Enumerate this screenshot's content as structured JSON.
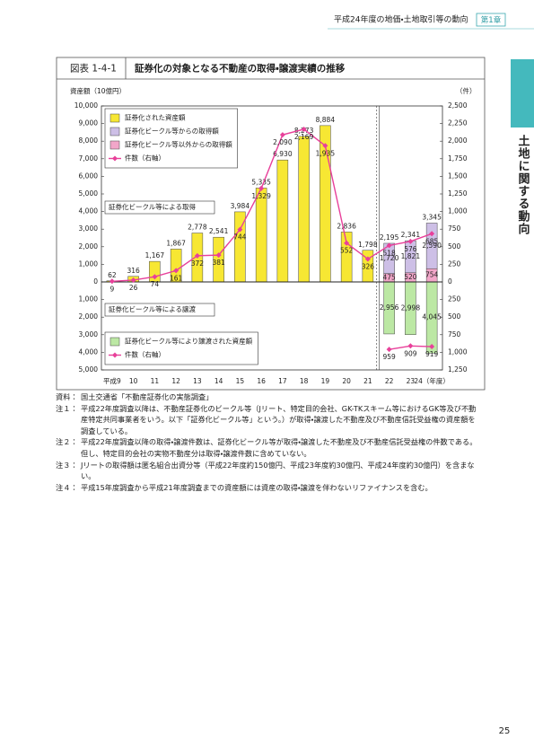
{
  "header": {
    "running_title": "平成24年度の地価・土地取引等の動向",
    "chapter": "第1章"
  },
  "side_tab": "土地に関する動向",
  "figure": {
    "number": "図表 1-4-1",
    "title": "証券化の対象となる不動産の取得・譲渡実績の推移"
  },
  "chart_data": {
    "type": "bar",
    "y_label": "資産額（10億円）",
    "y2_label": "（件）",
    "categories": [
      "平成9",
      "10",
      "11",
      "12",
      "13",
      "14",
      "15",
      "16",
      "17",
      "18",
      "19",
      "20",
      "21",
      "22",
      "23",
      "24（年度）"
    ],
    "ylim": [
      -5000,
      10000
    ],
    "yticks": [
      {
        "value": 10000,
        "label": "10,000"
      },
      {
        "value": 9000,
        "label": "9,000"
      },
      {
        "value": 8000,
        "label": "8,000"
      },
      {
        "value": 7000,
        "label": "7,000"
      },
      {
        "value": 6000,
        "label": "6,000"
      },
      {
        "value": 5000,
        "label": "5,000"
      },
      {
        "value": 4000,
        "label": "4,000"
      },
      {
        "value": 3000,
        "label": "3,000"
      },
      {
        "value": 2000,
        "label": "2,000"
      },
      {
        "value": 1000,
        "label": "1,000"
      },
      0,
      {
        "value": -1000,
        "label": "1,000"
      },
      {
        "value": -2000,
        "label": "2,000"
      },
      {
        "value": -3000,
        "label": "3,000"
      },
      {
        "value": -4000,
        "label": "4,000"
      },
      {
        "value": -5000,
        "label": "5,000"
      }
    ],
    "y2lim": [
      -1250,
      2500
    ],
    "y2ticks": [
      {
        "value": 2500,
        "label": "2,500"
      },
      {
        "value": 2250,
        "label": "2,250"
      },
      {
        "value": 2000,
        "label": "2,000"
      },
      {
        "value": 1750,
        "label": "1,750"
      },
      {
        "value": 1500,
        "label": "1,500"
      },
      {
        "value": 1250,
        "label": "1,250"
      },
      {
        "value": 1000,
        "label": "1,000"
      },
      750,
      500,
      250,
      0,
      {
        "value": -250,
        "label": "250"
      },
      {
        "value": -500,
        "label": "500"
      },
      {
        "value": -750,
        "label": "750"
      },
      {
        "value": -1000,
        "label": "1,000"
      },
      {
        "value": -1250,
        "label": "1,250"
      }
    ],
    "grid": false,
    "annotations": [
      "証券化ビークル等による取得",
      "証券化ビークル等による譲渡"
    ],
    "series": [
      {
        "name": "証券化された資産額",
        "type": "bar",
        "color": "#f7e733",
        "legend": "top-left",
        "values": [
          62,
          316,
          1167,
          1867,
          2778,
          2541,
          3984,
          5335,
          6930,
          8273,
          8884,
          2836,
          1798,
          null,
          null,
          null
        ],
        "value_labels": [
          "62",
          "316",
          "1,167",
          "1,867",
          "2,778",
          "2,541",
          "3,984",
          "5,335",
          "6,930",
          "8,273",
          "8,884",
          "2,836",
          "1,798",
          null,
          null,
          null
        ]
      },
      {
        "name": "証券化ビークル等からの取得額",
        "type": "bar",
        "color": "#cdbfe6",
        "legend": "top-left",
        "values": [
          null,
          null,
          null,
          null,
          null,
          null,
          null,
          null,
          null,
          null,
          null,
          null,
          null,
          1720,
          1821,
          2590
        ],
        "value_labels": [
          null,
          null,
          null,
          null,
          null,
          null,
          null,
          null,
          null,
          null,
          null,
          null,
          null,
          "1,720",
          "1,821",
          "2,590"
        ]
      },
      {
        "name": "証券化ビークル等以外からの取得額",
        "type": "bar",
        "color": "#f2a6c9",
        "legend": "top-left",
        "values": [
          null,
          null,
          null,
          null,
          null,
          null,
          null,
          null,
          null,
          null,
          null,
          null,
          null,
          475,
          520,
          754
        ]
      },
      {
        "name": "件数（右軸）",
        "type": "line",
        "axis": "y2",
        "color": "#e8409a",
        "legend": "top-left",
        "values": [
          9,
          26,
          74,
          161,
          372,
          381,
          744,
          1329,
          2090,
          2169,
          1935,
          552,
          326,
          518,
          576,
          685
        ],
        "value_labels": [
          "9",
          "26",
          "74",
          "161",
          "372",
          "381",
          "744",
          "1,329",
          "2,090",
          "2,169",
          "1,935",
          "552",
          "326",
          "518",
          "576",
          "685"
        ]
      },
      {
        "name": "証券化ビークル等により譲渡された資産額",
        "type": "bar",
        "color": "#bce8a4",
        "legend": "bottom-left",
        "values": [
          null,
          null,
          null,
          null,
          null,
          null,
          null,
          null,
          null,
          null,
          null,
          null,
          null,
          -2956,
          -2998,
          -4045
        ],
        "value_labels": [
          null,
          null,
          null,
          null,
          null,
          null,
          null,
          null,
          null,
          null,
          null,
          null,
          null,
          "2,956",
          "2,998",
          "4,045"
        ]
      },
      {
        "name": "件数（右軸）",
        "type": "line",
        "axis": "y2",
        "color": "#e8409a",
        "legend": "bottom-left",
        "values": [
          null,
          null,
          null,
          null,
          null,
          null,
          null,
          null,
          null,
          null,
          null,
          null,
          null,
          -959,
          -909,
          -919
        ],
        "value_labels": [
          null,
          null,
          null,
          null,
          null,
          null,
          null,
          null,
          null,
          null,
          null,
          null,
          null,
          "959",
          "909",
          "919"
        ]
      }
    ],
    "totals": {
      "values": [
        null,
        null,
        null,
        null,
        null,
        null,
        null,
        null,
        null,
        null,
        null,
        null,
        null,
        2195,
        2341,
        3345
      ],
      "value_labels": [
        null,
        null,
        null,
        null,
        null,
        null,
        null,
        null,
        null,
        null,
        null,
        null,
        null,
        "2,195",
        "2,341",
        "3,345"
      ]
    }
  },
  "notes": [
    {
      "label": "資料：",
      "text": "国土交通省「不動産証券化の実態調査」"
    },
    {
      "label": "注１：",
      "text": "平成22年度調査以降は、不動産証券化のビークル等（Jリート、特定目的会社、GK-TKスキーム等におけるGK等及び不動産特定共同事業者をいう。以下「証券化ビークル等」という。）が取得・譲渡した不動産及び不動産信託受益権の資産額を調査している。"
    },
    {
      "label": "注２：",
      "text": "平成22年度調査以降の取得・譲渡件数は、証券化ビークル等が取得・譲渡した不動産及び不動産信託受益権の件数である。但し、特定目的会社の実物不動産分は取得・譲渡件数に含めていない。"
    },
    {
      "label": "注３：",
      "text": "Jリートの取得額は匿名組合出資分等（平成22年度約150億円、平成23年度約30億円、平成24年度約30億円）を含まない。"
    },
    {
      "label": "注４：",
      "text": "平成15年度調査から平成21年度調査までの資産額には資産の取得・譲渡を伴わないリファイナンスを含む。"
    }
  ],
  "page_number": 25
}
